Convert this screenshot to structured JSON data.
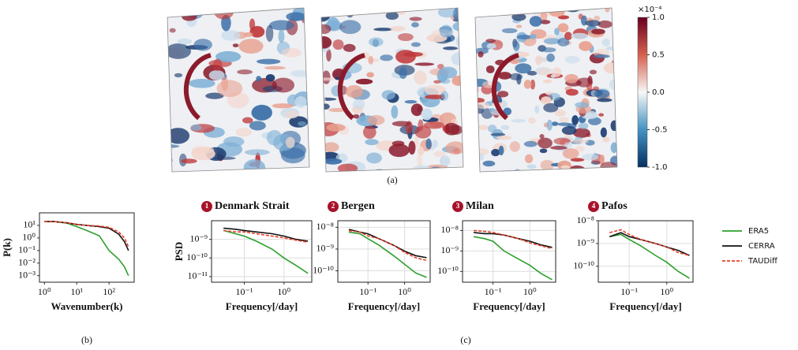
{
  "captions": {
    "a": "(a)",
    "b": "(b)",
    "c": "(c)"
  },
  "panel_a": {
    "colorbar": {
      "lim": [
        -1,
        1
      ],
      "scale_label": "×10⁻⁴",
      "ticks": [
        {
          "value": 1,
          "label": "1.0"
        },
        {
          "value": 0.5,
          "label": "0.5"
        },
        {
          "value": 0,
          "label": "0.0"
        },
        {
          "value": -0.5,
          "label": "-0.5"
        },
        {
          "value": -1,
          "label": "-1.0"
        }
      ]
    }
  },
  "legend": [
    {
      "name": "ERA5",
      "color": "#2ca02c",
      "dashed": false
    },
    {
      "name": "CERRA",
      "color": "#111111",
      "dashed": false
    },
    {
      "name": "TAUDiff",
      "color": "#e8402a",
      "dashed": true
    }
  ],
  "chart_data": [
    {
      "type": "line",
      "xlabel": "Wavenumber(k)",
      "ylabel": "P(k)",
      "log_x": true,
      "log_y": true,
      "grid": false,
      "x": [
        1,
        2,
        5,
        10,
        20,
        50,
        100,
        200,
        300,
        400
      ],
      "xlim": [
        0.7,
        600
      ],
      "xticks": [
        {
          "value": 1,
          "label": "10⁰"
        },
        {
          "value": 10,
          "label": "10¹"
        },
        {
          "value": 100,
          "label": "10²"
        }
      ],
      "ylim": [
        0.0003,
        100
      ],
      "yticks": [
        {
          "value": 10,
          "label": "10¹"
        },
        {
          "value": 1,
          "label": "10⁰"
        },
        {
          "value": 0.1,
          "label": "10⁻¹"
        },
        {
          "value": 0.01,
          "label": "10⁻²"
        },
        {
          "value": 0.001,
          "label": "10⁻³"
        }
      ],
      "series": [
        {
          "values": [
            20,
            20,
            15,
            8,
            4,
            1.5,
            0.1,
            0.02,
            0.005,
            0.001
          ]
        },
        {
          "values": [
            20,
            20,
            16,
            12,
            10,
            8,
            6,
            2,
            0.5,
            0.1
          ]
        },
        {
          "values": [
            20,
            20,
            16,
            12,
            10,
            9,
            7,
            3,
            1,
            0.2
          ]
        }
      ]
    },
    {
      "type": "line",
      "badge": "1",
      "title": "Denmark Strait",
      "xlabel": "Frequency[/day]",
      "ylabel": "PSD",
      "log_x": true,
      "log_y": true,
      "grid": true,
      "x": [
        0.03,
        0.06,
        0.1,
        0.2,
        0.5,
        1,
        2,
        4
      ],
      "xlim": [
        0.015,
        5
      ],
      "xticks": [
        {
          "value": 0.1,
          "label": "10⁻¹"
        },
        {
          "value": 1,
          "label": "10⁰"
        }
      ],
      "ylim": [
        5e-12,
        1e-08
      ],
      "yticks": [
        {
          "value": 1e-09,
          "label": "10⁻⁹"
        },
        {
          "value": 1e-10,
          "label": "10⁻¹⁰"
        },
        {
          "value": 1e-11,
          "label": "10⁻¹¹"
        }
      ],
      "series": [
        {
          "values": [
            3e-09,
            2e-09,
            1.5e-09,
            8e-10,
            3e-10,
            1e-10,
            4e-11,
            1.5e-11
          ]
        },
        {
          "values": [
            4e-09,
            3.5e-09,
            3e-09,
            2.5e-09,
            2e-09,
            1.5e-09,
            1e-09,
            8e-10
          ]
        },
        {
          "values": [
            3e-09,
            2.5e-09,
            2.5e-09,
            2e-09,
            1.5e-09,
            1.2e-09,
            9e-10,
            7e-10
          ]
        }
      ]
    },
    {
      "type": "line",
      "badge": "2",
      "title": "Bergen",
      "xlabel": "Frequency[/day]",
      "log_x": true,
      "log_y": true,
      "grid": true,
      "x": [
        0.03,
        0.06,
        0.1,
        0.2,
        0.5,
        1,
        2,
        4
      ],
      "xlim": [
        0.015,
        5
      ],
      "xticks": [
        {
          "value": 0.1,
          "label": "10⁻¹"
        },
        {
          "value": 1,
          "label": "10⁰"
        }
      ],
      "ylim": [
        3e-11,
        2e-08
      ],
      "yticks": [
        {
          "value": 1e-08,
          "label": "10⁻⁸"
        },
        {
          "value": 1e-09,
          "label": "10⁻⁹"
        },
        {
          "value": 1e-10,
          "label": "10⁻¹⁰"
        }
      ],
      "series": [
        {
          "values": [
            6e-09,
            5e-09,
            3e-09,
            1.5e-09,
            5e-10,
            2e-10,
            8e-11,
            5e-11
          ]
        },
        {
          "values": [
            8e-09,
            6e-09,
            5e-09,
            3e-09,
            1.5e-09,
            8e-10,
            5e-10,
            4e-10
          ]
        },
        {
          "values": [
            7e-09,
            6e-09,
            4e-09,
            3e-09,
            1.5e-09,
            7e-10,
            4e-10,
            3e-10
          ]
        }
      ]
    },
    {
      "type": "line",
      "badge": "3",
      "title": "Milan",
      "xlabel": "Frequency[/day]",
      "log_x": true,
      "log_y": true,
      "grid": true,
      "x": [
        0.03,
        0.06,
        0.1,
        0.2,
        0.5,
        1,
        2,
        4
      ],
      "xlim": [
        0.015,
        5
      ],
      "xticks": [
        {
          "value": 0.1,
          "label": "10⁻¹"
        },
        {
          "value": 1,
          "label": "10⁰"
        }
      ],
      "ylim": [
        3e-11,
        3e-08
      ],
      "yticks": [
        {
          "value": 1e-08,
          "label": "10⁻⁸"
        },
        {
          "value": 1e-09,
          "label": "10⁻⁹"
        },
        {
          "value": 1e-10,
          "label": "10⁻¹⁰"
        }
      ],
      "series": [
        {
          "values": [
            5e-09,
            4e-09,
            3e-09,
            1e-09,
            4e-10,
            2e-10,
            8e-11,
            4e-11
          ]
        },
        {
          "values": [
            8e-09,
            7e-09,
            7e-09,
            6e-09,
            4e-09,
            3e-09,
            2e-09,
            1.5e-09
          ]
        },
        {
          "values": [
            1e-08,
            9e-09,
            8e-09,
            6e-09,
            4e-09,
            2.5e-09,
            1.8e-09,
            1.3e-09
          ]
        }
      ]
    },
    {
      "type": "line",
      "badge": "4",
      "title": "Pafos",
      "xlabel": "Frequency[/day]",
      "log_x": true,
      "log_y": true,
      "grid": true,
      "x": [
        0.03,
        0.06,
        0.1,
        0.2,
        0.5,
        1,
        2,
        4
      ],
      "xlim": [
        0.015,
        5
      ],
      "xticks": [
        {
          "value": 0.1,
          "label": "10⁻¹"
        },
        {
          "value": 1,
          "label": "10⁰"
        }
      ],
      "ylim": [
        2e-11,
        1e-08
      ],
      "yticks": [
        {
          "value": 1e-08,
          "label": "10⁻⁸"
        },
        {
          "value": 1e-09,
          "label": "10⁻⁹"
        },
        {
          "value": 1e-10,
          "label": "10⁻¹⁰"
        }
      ],
      "series": [
        {
          "values": [
            2e-09,
            2.5e-09,
            1.5e-09,
            8e-10,
            3e-10,
            1.5e-10,
            6e-11,
            3e-11
          ]
        },
        {
          "values": [
            2e-09,
            3e-09,
            2e-09,
            1.5e-09,
            1e-09,
            7e-10,
            5e-10,
            3e-10
          ]
        },
        {
          "values": [
            3e-09,
            4e-09,
            2.5e-09,
            1.5e-09,
            1e-09,
            7e-10,
            4e-10,
            3e-10
          ]
        }
      ]
    }
  ]
}
